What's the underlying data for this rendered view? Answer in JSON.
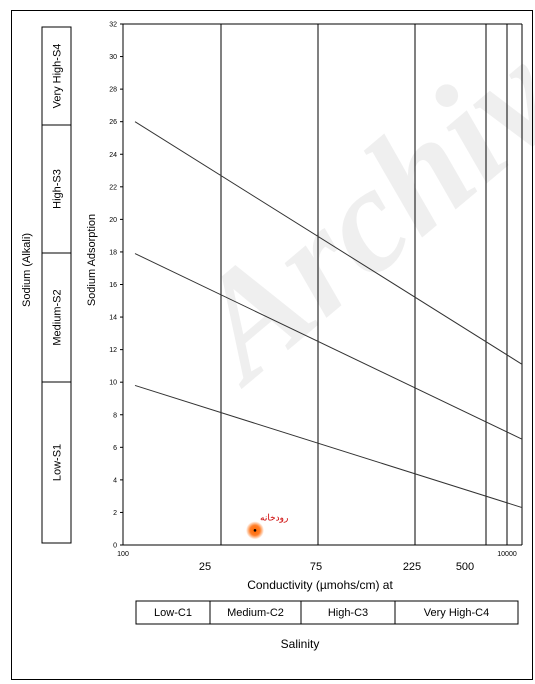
{
  "chart_data": {
    "type": "scatter",
    "xlabel": "Conductivity (µmohs/cm) at",
    "ylabel": "Sodium Adsorption",
    "outer_ylabel": "Sodium (Alkali)",
    "ylim": [
      0,
      32
    ],
    "y_ticks": [
      "0",
      "2",
      "4",
      "6",
      "8",
      "10",
      "12",
      "14",
      "16",
      "18",
      "20",
      "22",
      "24",
      "26",
      "28",
      "30",
      "32"
    ],
    "x_tick_labels": [
      "100",
      "25",
      "75",
      "225",
      "500",
      "10000"
    ],
    "grid": false,
    "sodium_hazard_classes": [
      "Low-S1",
      "Medium-S2",
      "High-S3",
      "Very High-S4"
    ],
    "salinity_hazard_classes": [
      "Low-C1",
      "Medium-C2",
      "High-C3",
      "Very High-C4"
    ],
    "salinity_title": "Salinity",
    "class_boundary_lines": [
      {
        "left_sar": 26,
        "right_sar": 11.1
      },
      {
        "left_sar": 17.9,
        "right_sar": 6.5
      },
      {
        "left_sar": 9.8,
        "right_sar": 2.3
      }
    ],
    "points": [
      {
        "label": "رودخانه",
        "sar": 0.9,
        "salinity_class": "Medium-C2"
      }
    ],
    "point_color": "#ff6600",
    "label_color": "#cc0000"
  }
}
